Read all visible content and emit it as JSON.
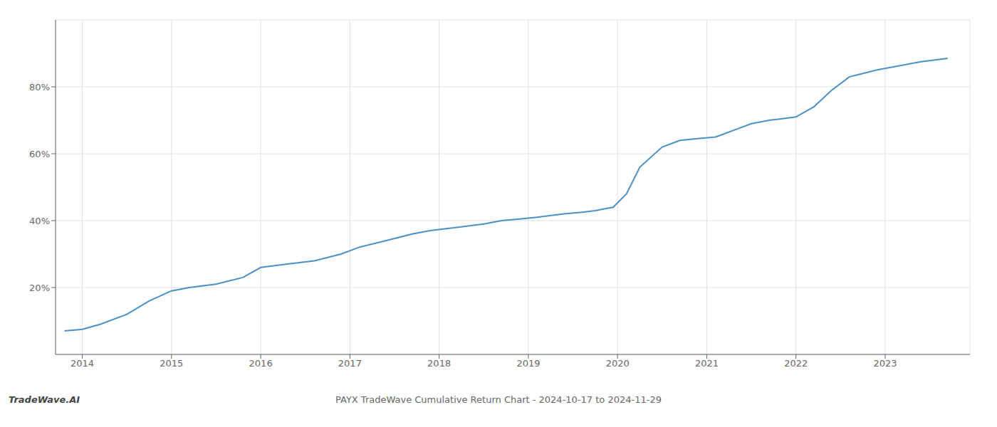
{
  "chart_data": {
    "type": "line",
    "title": "PAYX TradeWave Cumulative Return Chart - 2024-10-17 to 2024-11-29",
    "annotations": [
      "TradeWave.AI"
    ],
    "x": [
      2013.8,
      2014.0,
      2014.2,
      2014.5,
      2014.75,
      2015.0,
      2015.2,
      2015.5,
      2015.8,
      2016.0,
      2016.3,
      2016.6,
      2016.9,
      2017.1,
      2017.4,
      2017.7,
      2017.9,
      2018.2,
      2018.5,
      2018.7,
      2018.9,
      2019.1,
      2019.4,
      2019.6,
      2019.75,
      2019.85,
      2019.95,
      2020.1,
      2020.25,
      2020.5,
      2020.7,
      2020.9,
      2021.1,
      2021.3,
      2021.5,
      2021.7,
      2021.85,
      2022.0,
      2022.2,
      2022.4,
      2022.6,
      2022.75,
      2022.9,
      2023.1,
      2023.4,
      2023.7
    ],
    "values": [
      7,
      7.5,
      9,
      12,
      16,
      19,
      20,
      21,
      23,
      26,
      27,
      28,
      30,
      32,
      34,
      36,
      37,
      38,
      39,
      40,
      40.5,
      41,
      42,
      42.5,
      43,
      43.5,
      44,
      48,
      56,
      62,
      64,
      64.5,
      65,
      67,
      69,
      70,
      70.5,
      71,
      74,
      79,
      83,
      84,
      85,
      86,
      87.5,
      88.5
    ],
    "color": "#4a90c4",
    "xlim": [
      2013.7,
      2023.95
    ],
    "ylim": [
      0,
      100
    ],
    "xticks": [
      2014,
      2015,
      2016,
      2017,
      2018,
      2019,
      2020,
      2021,
      2022,
      2023
    ],
    "yticks": [
      {
        "value": 20,
        "label": "20%"
      },
      {
        "value": 40,
        "label": "40%"
      },
      {
        "value": 60,
        "label": "60%"
      },
      {
        "value": 80,
        "label": "80%"
      }
    ],
    "grid": true
  }
}
